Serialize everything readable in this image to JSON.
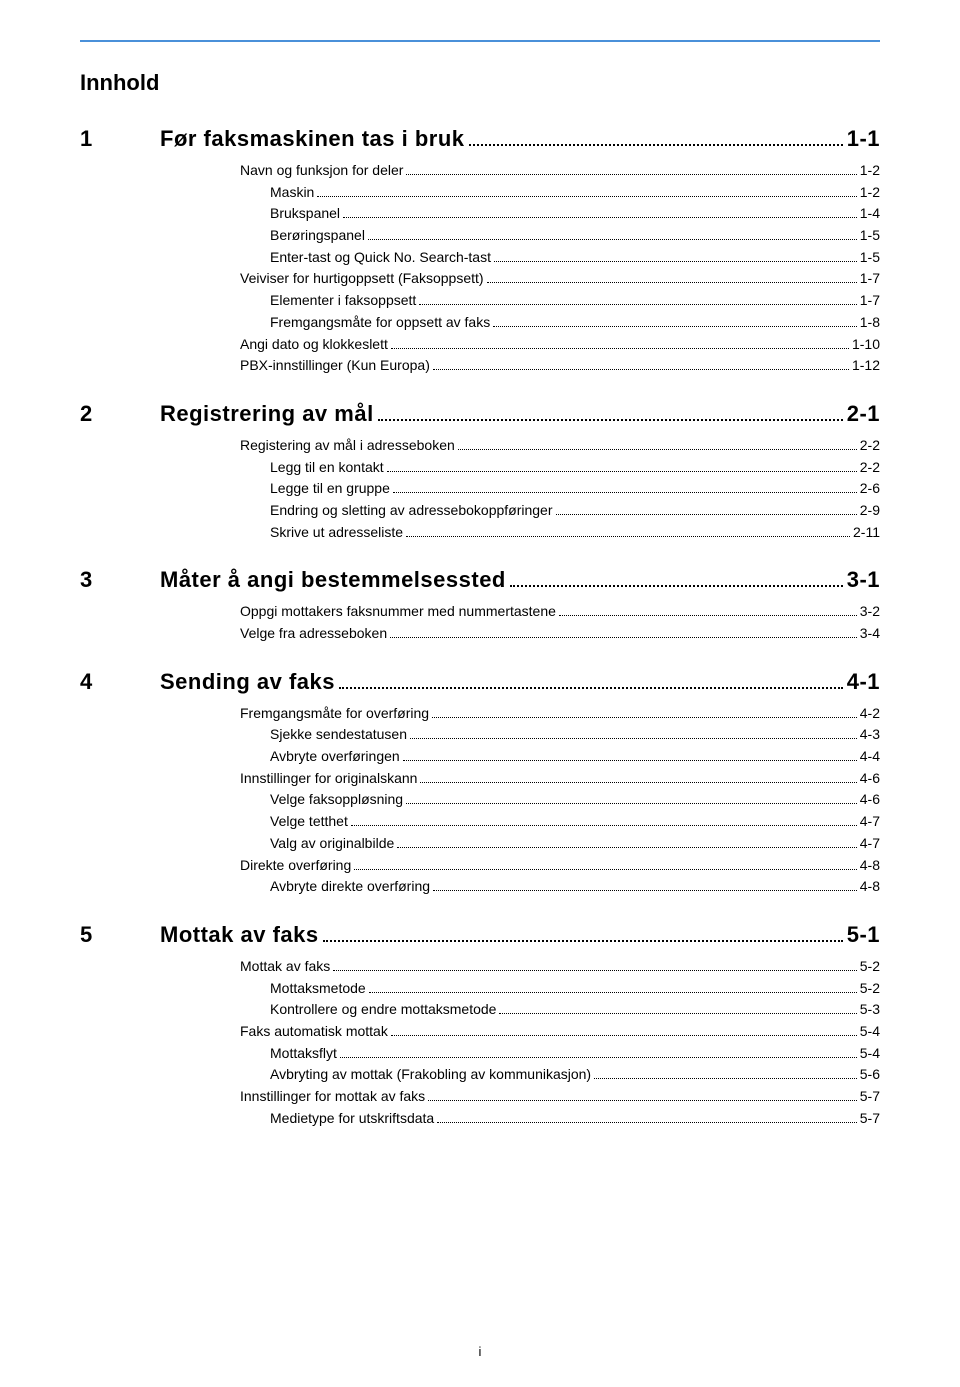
{
  "doc": {
    "title": "Innhold",
    "footer_page": "i"
  },
  "colors": {
    "rule": "#4a90d9",
    "text": "#000000",
    "bg": "#ffffff"
  },
  "typography": {
    "title_fontsize": 22,
    "section_fontsize": 22,
    "entry_fontsize": 14
  },
  "sections": [
    {
      "num": "1",
      "title": "Før faksmaskinen tas i bruk",
      "page": "1-1",
      "items": [
        {
          "label": "Navn og funksjon for deler",
          "page": "1-2",
          "level": 0
        },
        {
          "label": "Maskin",
          "page": "1-2",
          "level": 1
        },
        {
          "label": "Brukspanel",
          "page": "1-4",
          "level": 1
        },
        {
          "label": "Berøringspanel",
          "page": "1-5",
          "level": 1
        },
        {
          "label": "Enter-tast og Quick No. Search-tast",
          "page": "1-5",
          "level": 1
        },
        {
          "label": "Veiviser for hurtigoppsett (Faksoppsett)",
          "page": "1-7",
          "level": 0
        },
        {
          "label": "Elementer i faksoppsett",
          "page": "1-7",
          "level": 1
        },
        {
          "label": "Fremgangsmåte for oppsett av faks",
          "page": "1-8",
          "level": 1
        },
        {
          "label": "Angi dato og klokkeslett",
          "page": "1-10",
          "level": 0
        },
        {
          "label": "PBX-innstillinger (Kun Europa)",
          "page": "1-12",
          "level": 0
        }
      ]
    },
    {
      "num": "2",
      "title": "Registrering av mål",
      "page": "2-1",
      "items": [
        {
          "label": "Registering av mål i adresseboken",
          "page": "2-2",
          "level": 0
        },
        {
          "label": "Legg til en kontakt",
          "page": "2-2",
          "level": 1
        },
        {
          "label": "Legge til en gruppe",
          "page": "2-6",
          "level": 1
        },
        {
          "label": "Endring og sletting av adressebokoppføringer",
          "page": "2-9",
          "level": 1
        },
        {
          "label": "Skrive ut adresseliste",
          "page": "2-11",
          "level": 1
        }
      ]
    },
    {
      "num": "3",
      "title": "Måter å angi bestemmelsessted",
      "page": "3-1",
      "items": [
        {
          "label": "Oppgi mottakers faksnummer med nummertastene",
          "page": "3-2",
          "level": 0
        },
        {
          "label": "Velge fra adresseboken",
          "page": "3-4",
          "level": 0
        }
      ]
    },
    {
      "num": "4",
      "title": "Sending av faks",
      "page": "4-1",
      "items": [
        {
          "label": "Fremgangsmåte for overføring",
          "page": "4-2",
          "level": 0
        },
        {
          "label": "Sjekke sendestatusen",
          "page": "4-3",
          "level": 1
        },
        {
          "label": "Avbryte overføringen",
          "page": "4-4",
          "level": 1
        },
        {
          "label": "Innstillinger for originalskann",
          "page": "4-6",
          "level": 0
        },
        {
          "label": "Velge faksoppløsning",
          "page": "4-6",
          "level": 1
        },
        {
          "label": "Velge tetthet",
          "page": "4-7",
          "level": 1
        },
        {
          "label": "Valg av originalbilde",
          "page": "4-7",
          "level": 1
        },
        {
          "label": "Direkte overføring",
          "page": "4-8",
          "level": 0
        },
        {
          "label": "Avbryte direkte overføring",
          "page": "4-8",
          "level": 1
        }
      ]
    },
    {
      "num": "5",
      "title": "Mottak av faks",
      "page": "5-1",
      "items": [
        {
          "label": "Mottak av faks",
          "page": "5-2",
          "level": 0
        },
        {
          "label": "Mottaksmetode",
          "page": "5-2",
          "level": 1
        },
        {
          "label": "Kontrollere og endre mottaksmetode",
          "page": "5-3",
          "level": 1
        },
        {
          "label": "Faks automatisk mottak",
          "page": "5-4",
          "level": 0
        },
        {
          "label": "Mottaksflyt",
          "page": "5-4",
          "level": 1
        },
        {
          "label": "Avbryting av mottak (Frakobling av kommunikasjon)",
          "page": "5-6",
          "level": 1
        },
        {
          "label": "Innstillinger for mottak av faks",
          "page": "5-7",
          "level": 0
        },
        {
          "label": "Medietype for utskriftsdata",
          "page": "5-7",
          "level": 1
        }
      ]
    }
  ]
}
